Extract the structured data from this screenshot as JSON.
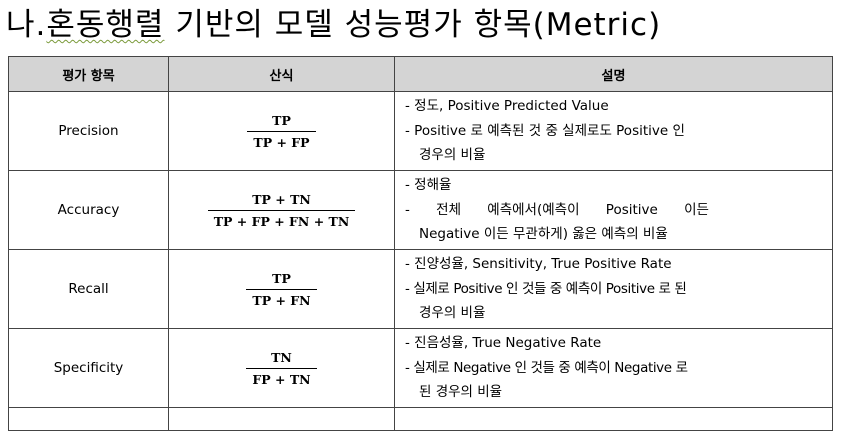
{
  "heading": {
    "prefix": "나.",
    "squiggle": "혼동행렬",
    "rest": " 기반의 모델 성능평가 항목(Metric)"
  },
  "table": {
    "headers": [
      "평가 항목",
      "산식",
      "설명"
    ],
    "rows": [
      {
        "metric": "Precision",
        "numerator": "TP",
        "denominator": "TP + FP",
        "desc": [
          "- 정도, Positive Predicted Value",
          "- Positive 로 예측된 것 중 실제로도 Positive 인",
          "경우의 비율"
        ]
      },
      {
        "metric": "Accuracy",
        "numerator": "TP + TN",
        "denominator": "TP + FP + FN + TN",
        "desc": [
          "- 정해율",
          "- 전체 예측에서(예측이 Positive 이든",
          "Negative 이든 무관하게) 옳은 예측의 비율"
        ]
      },
      {
        "metric": "Recall",
        "numerator": "TP",
        "denominator": "TP + FN",
        "desc": [
          "- 진양성율, Sensitivity, True Positive Rate",
          "- 실제로 Positive 인 것들 중 예측이 Positive 로 된",
          "경우의 비율"
        ]
      },
      {
        "metric": "Specificity",
        "numerator": "TN",
        "denominator": "FP + TN",
        "desc": [
          "- 진음성율, True Negative Rate",
          "- 실제로 Negative 인 것들 중 예측이 Negative 로",
          "된 경우의 비율"
        ]
      }
    ]
  },
  "colors": {
    "header_bg": "#d4d4d4",
    "border": "#444444"
  }
}
